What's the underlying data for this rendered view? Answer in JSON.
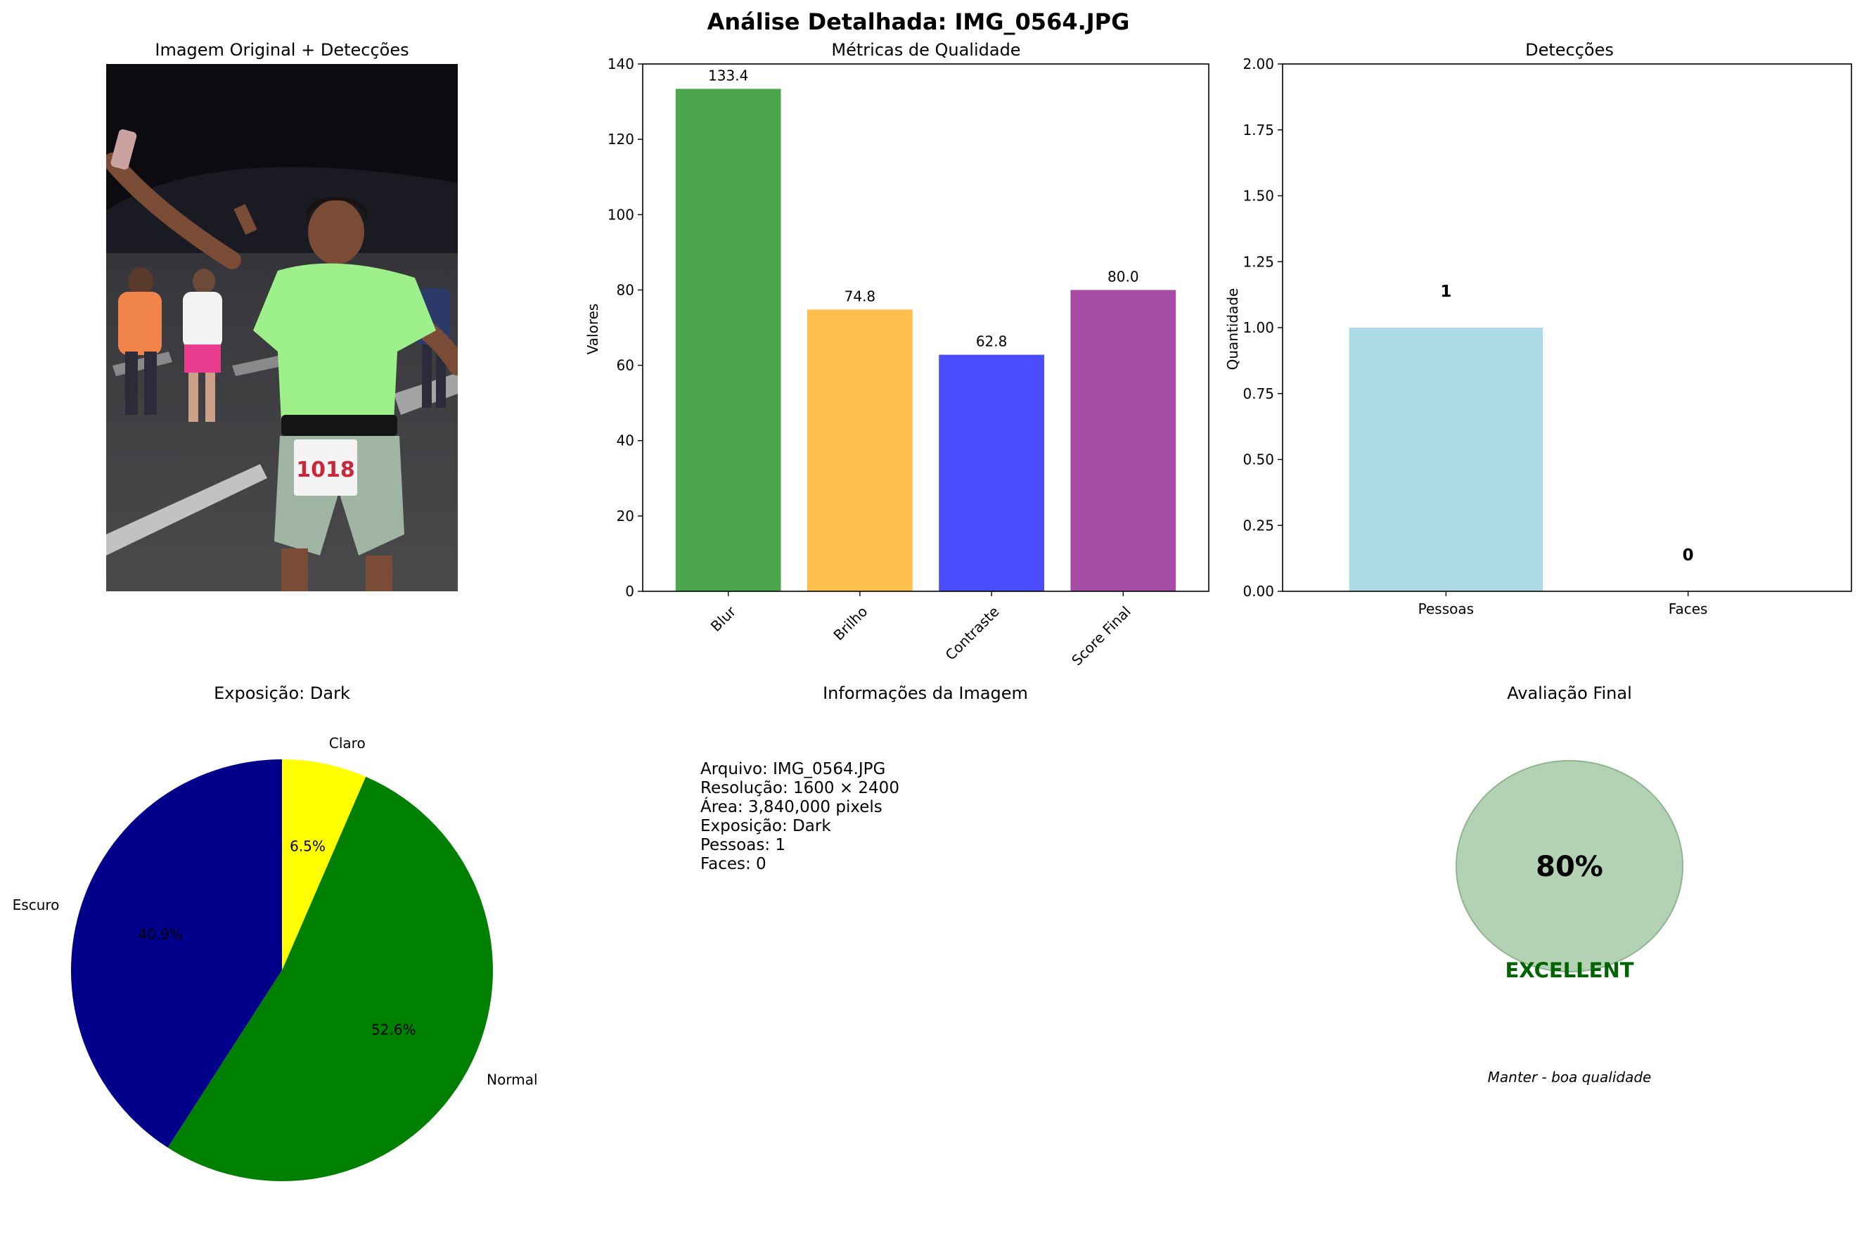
{
  "suptitle": "Análise Detalhada: IMG_0564.JPG",
  "panels": {
    "image": {
      "title": "Imagem Original + Detecções"
    },
    "info": {
      "title": "Informações da Imagem",
      "lines": [
        "Arquivo: IMG_0564.JPG",
        "Resolução: 1600 × 2400",
        "Área: 3,840,000 pixels",
        "Exposição: Dark",
        "Pessoas: 1",
        "Faces: 0"
      ]
    },
    "final": {
      "title": "Avaliação Final",
      "score_text": "80%",
      "rating": "EXCELLENT",
      "recommendation": "Manter - boa qualidade",
      "circle_color": "#b3d1b3",
      "rating_color": "#006400"
    }
  },
  "chart_data": [
    {
      "type": "bar",
      "title": "Métricas de Qualidade",
      "xlabel": "",
      "ylabel": "Valores",
      "categories": [
        "Blur",
        "Brilho",
        "Contraste",
        "Score Final"
      ],
      "values": [
        133.4,
        74.8,
        62.8,
        80.0
      ],
      "value_labels": [
        "133.4",
        "74.8",
        "62.8",
        "80.0"
      ],
      "colors": [
        "#4ca64c",
        "#ffbf4c",
        "#4c4cff",
        "#a64ca6"
      ],
      "ylim": [
        0,
        140
      ],
      "yticks": [
        "0",
        "20",
        "40",
        "60",
        "80",
        "100",
        "120",
        "140"
      ],
      "grid": false
    },
    {
      "type": "bar",
      "title": "Detecções",
      "xlabel": "",
      "ylabel": "Quantidade",
      "categories": [
        "Pessoas",
        "Faces"
      ],
      "values": [
        1,
        0
      ],
      "value_labels": [
        "1",
        "0"
      ],
      "colors": [
        "#add8e6",
        "#ffb6c1"
      ],
      "ylim": [
        0,
        2
      ],
      "yticks": [
        "0.00",
        "0.25",
        "0.50",
        "0.75",
        "1.00",
        "1.25",
        "1.50",
        "1.75",
        "2.00"
      ],
      "grid": false
    },
    {
      "type": "pie",
      "title": "Exposição: Dark",
      "categories": [
        "Escuro",
        "Normal",
        "Claro"
      ],
      "values": [
        40.9,
        52.6,
        6.5
      ],
      "value_labels": [
        "40.9%",
        "52.6%",
        "6.5%"
      ],
      "colors": [
        "#00008b",
        "#008000",
        "#ffff00"
      ]
    }
  ]
}
